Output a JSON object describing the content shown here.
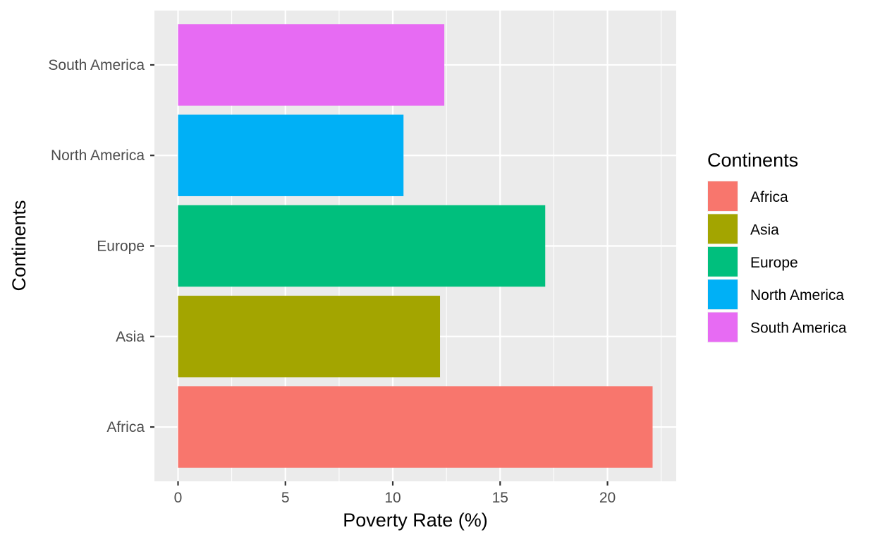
{
  "chart_data": {
    "type": "bar",
    "orientation": "horizontal",
    "categories": [
      "Africa",
      "Asia",
      "Europe",
      "North America",
      "South America"
    ],
    "values": [
      22.1,
      12.2,
      17.1,
      10.5,
      12.4
    ],
    "xlabel": "Poverty Rate (%)",
    "ylabel": "Continents",
    "xlim": [
      -1.1,
      23.2
    ],
    "x_ticks": [
      0,
      5,
      10,
      15,
      20
    ],
    "x_tick_labels": [
      "0",
      "5",
      "10",
      "15",
      "20"
    ],
    "grid": true,
    "legend": {
      "title": "Continents",
      "position": "right",
      "entries": [
        "Africa",
        "Asia",
        "Europe",
        "North America",
        "South America"
      ]
    },
    "colors": {
      "Africa": "#f8766d",
      "Asia": "#a3a500",
      "Europe": "#00bf7d",
      "North America": "#00b0f6",
      "South America": "#e76bf3"
    }
  }
}
